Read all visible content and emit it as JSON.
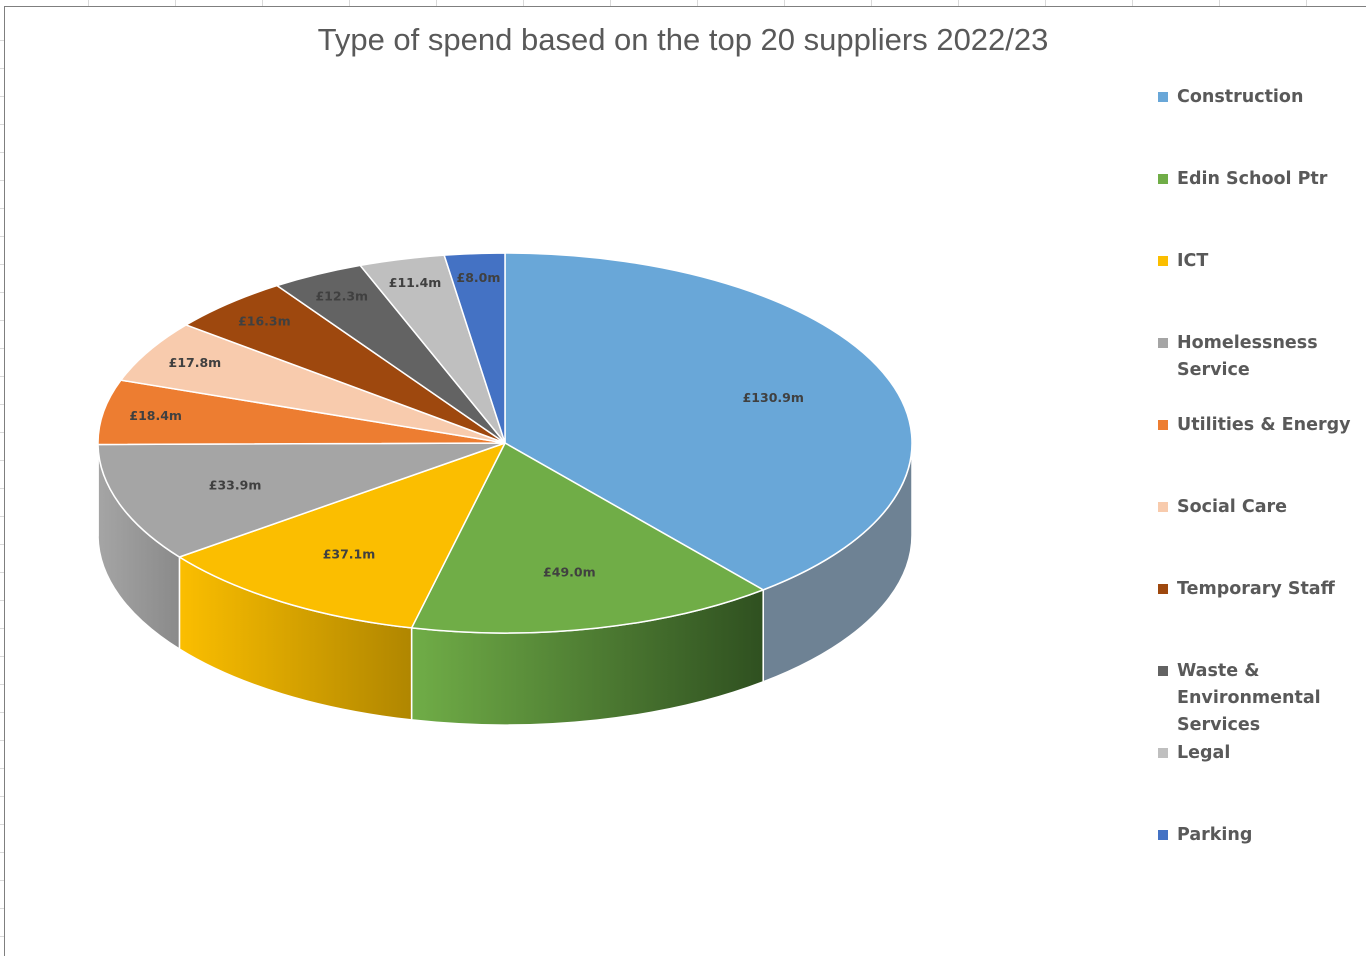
{
  "chart_data": {
    "type": "pie",
    "title": "Type of spend based on the top 20 suppliers 2022/23",
    "legend_position": "right",
    "slices": [
      {
        "name": "Construction",
        "value": 130.9,
        "label": "£130.9m",
        "color": "#69A7D8",
        "dark": "#6E8294"
      },
      {
        "name": "Edin School Ptr",
        "value": 49.0,
        "label": "£49.0m",
        "color": "#70AD47",
        "dark": "#2F5020"
      },
      {
        "name": "ICT",
        "value": 37.1,
        "label": "£37.1m",
        "color": "#FBBE00",
        "dark": "#B08600"
      },
      {
        "name": "Homelessness Service",
        "value": 33.9,
        "label": "£33.9m",
        "color": "#A5A5A5",
        "dark": "#8A8A8A"
      },
      {
        "name": "Utilities & Energy",
        "value": 18.4,
        "label": "£18.4m",
        "color": "#ED7D31",
        "dark": "#A85620"
      },
      {
        "name": "Social Care",
        "value": 17.8,
        "label": "£17.8m",
        "color": "#F8CBAD",
        "dark": "#C9A38A"
      },
      {
        "name": "Temporary Staff",
        "value": 16.3,
        "label": "£16.3m",
        "color": "#9E480E",
        "dark": "#6A2F08"
      },
      {
        "name": "Waste & Environmental Services",
        "value": 12.3,
        "label": "£12.3m",
        "color": "#636363",
        "dark": "#444444"
      },
      {
        "name": "Legal",
        "value": 11.4,
        "label": "£11.4m",
        "color": "#BFBFBF",
        "dark": "#8F8F8F"
      },
      {
        "name": "Parking",
        "value": 8.0,
        "label": "£8.0m",
        "color": "#4472C4",
        "dark": "#2E4F8A"
      }
    ]
  }
}
